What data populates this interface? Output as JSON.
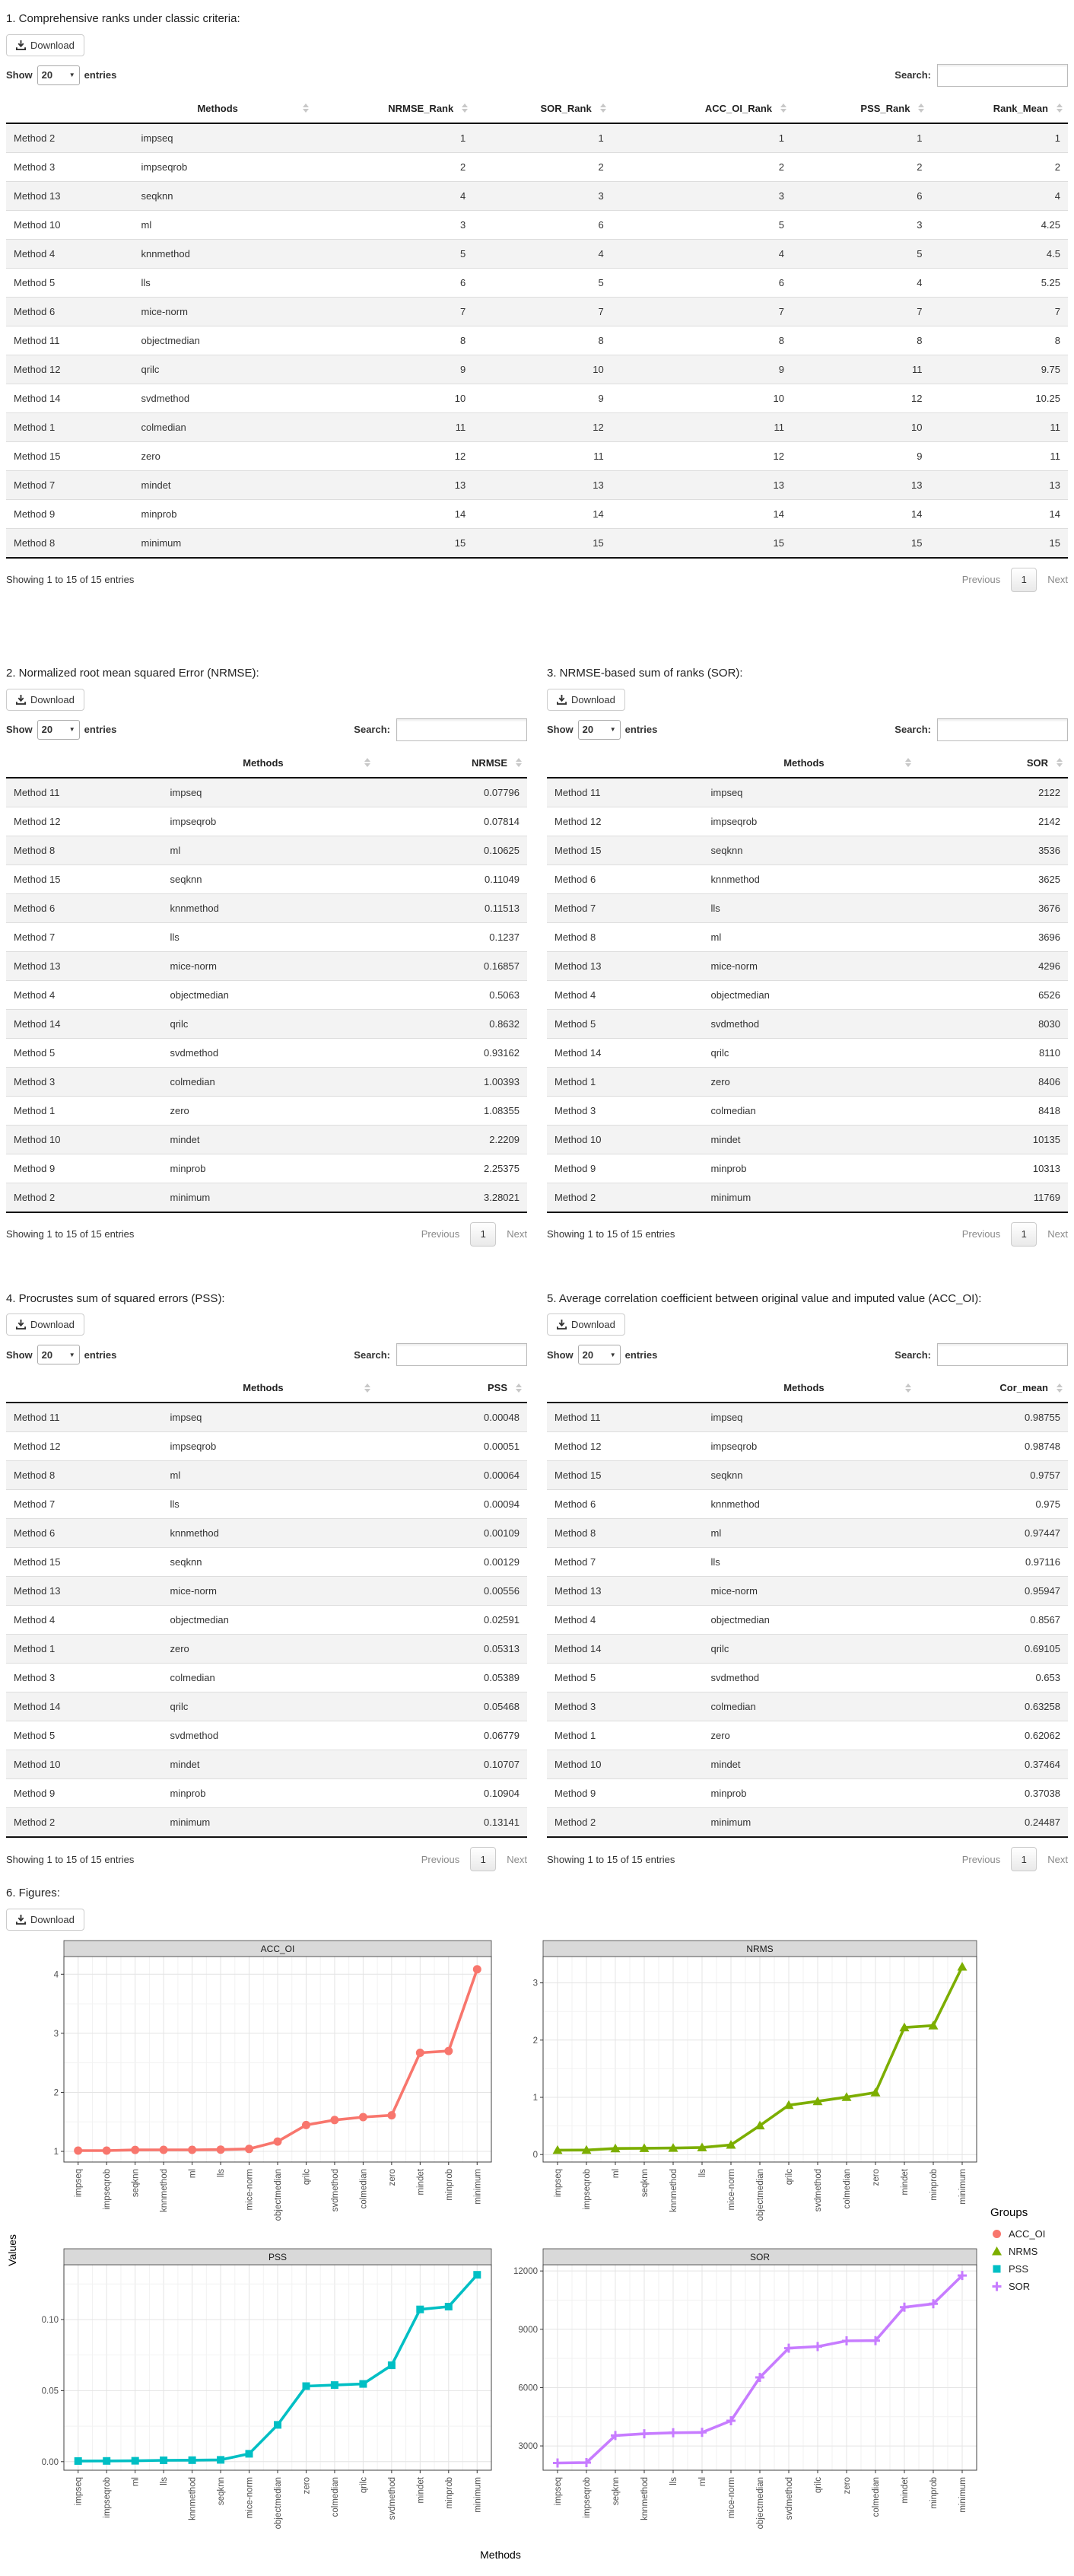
{
  "common": {
    "download_label": "Download",
    "show_label": "Show",
    "page_size": "20",
    "entries_label": "entries",
    "search_label": "Search:",
    "info_text": "Showing 1 to 15 of 15 entries",
    "previous_label": "Previous",
    "page_number": "1",
    "next_label": "Next"
  },
  "tables": [
    {
      "title": "1. Comprehensive ranks under classic criteria:",
      "columns": [
        "",
        "Methods",
        "NRMSE_Rank",
        "SOR_Rank",
        "ACC_OI_Rank",
        "PSS_Rank",
        "Rank_Mean"
      ],
      "rows": [
        [
          "Method 2",
          "impseq",
          "1",
          "1",
          "1",
          "1",
          "1"
        ],
        [
          "Method 3",
          "impseqrob",
          "2",
          "2",
          "2",
          "2",
          "2"
        ],
        [
          "Method 13",
          "seqknn",
          "4",
          "3",
          "3",
          "6",
          "4"
        ],
        [
          "Method 10",
          "ml",
          "3",
          "6",
          "5",
          "3",
          "4.25"
        ],
        [
          "Method 4",
          "knnmethod",
          "5",
          "4",
          "4",
          "5",
          "4.5"
        ],
        [
          "Method 5",
          "lls",
          "6",
          "5",
          "6",
          "4",
          "5.25"
        ],
        [
          "Method 6",
          "mice-norm",
          "7",
          "7",
          "7",
          "7",
          "7"
        ],
        [
          "Method 11",
          "objectmedian",
          "8",
          "8",
          "8",
          "8",
          "8"
        ],
        [
          "Method 12",
          "qrilc",
          "9",
          "10",
          "9",
          "11",
          "9.75"
        ],
        [
          "Method 14",
          "svdmethod",
          "10",
          "9",
          "10",
          "12",
          "10.25"
        ],
        [
          "Method 1",
          "colmedian",
          "11",
          "12",
          "11",
          "10",
          "11"
        ],
        [
          "Method 15",
          "zero",
          "12",
          "11",
          "12",
          "9",
          "11"
        ],
        [
          "Method 7",
          "mindet",
          "13",
          "13",
          "13",
          "13",
          "13"
        ],
        [
          "Method 9",
          "minprob",
          "14",
          "14",
          "14",
          "14",
          "14"
        ],
        [
          "Method 8",
          "minimum",
          "15",
          "15",
          "15",
          "15",
          "15"
        ]
      ]
    },
    {
      "title": "2. Normalized root mean squared Error (NRMSE):",
      "columns": [
        "",
        "Methods",
        "NRMSE"
      ],
      "rows": [
        [
          "Method 11",
          "impseq",
          "0.07796"
        ],
        [
          "Method 12",
          "impseqrob",
          "0.07814"
        ],
        [
          "Method 8",
          "ml",
          "0.10625"
        ],
        [
          "Method 15",
          "seqknn",
          "0.11049"
        ],
        [
          "Method 6",
          "knnmethod",
          "0.11513"
        ],
        [
          "Method 7",
          "lls",
          "0.1237"
        ],
        [
          "Method 13",
          "mice-norm",
          "0.16857"
        ],
        [
          "Method 4",
          "objectmedian",
          "0.5063"
        ],
        [
          "Method 14",
          "qrilc",
          "0.8632"
        ],
        [
          "Method 5",
          "svdmethod",
          "0.93162"
        ],
        [
          "Method 3",
          "colmedian",
          "1.00393"
        ],
        [
          "Method 1",
          "zero",
          "1.08355"
        ],
        [
          "Method 10",
          "mindet",
          "2.2209"
        ],
        [
          "Method 9",
          "minprob",
          "2.25375"
        ],
        [
          "Method 2",
          "minimum",
          "3.28021"
        ]
      ]
    },
    {
      "title": "3. NRMSE-based sum of ranks (SOR):",
      "columns": [
        "",
        "Methods",
        "SOR"
      ],
      "rows": [
        [
          "Method 11",
          "impseq",
          "2122"
        ],
        [
          "Method 12",
          "impseqrob",
          "2142"
        ],
        [
          "Method 15",
          "seqknn",
          "3536"
        ],
        [
          "Method 6",
          "knnmethod",
          "3625"
        ],
        [
          "Method 7",
          "lls",
          "3676"
        ],
        [
          "Method 8",
          "ml",
          "3696"
        ],
        [
          "Method 13",
          "mice-norm",
          "4296"
        ],
        [
          "Method 4",
          "objectmedian",
          "6526"
        ],
        [
          "Method 5",
          "svdmethod",
          "8030"
        ],
        [
          "Method 14",
          "qrilc",
          "8110"
        ],
        [
          "Method 1",
          "zero",
          "8406"
        ],
        [
          "Method 3",
          "colmedian",
          "8418"
        ],
        [
          "Method 10",
          "mindet",
          "10135"
        ],
        [
          "Method 9",
          "minprob",
          "10313"
        ],
        [
          "Method 2",
          "minimum",
          "11769"
        ]
      ]
    },
    {
      "title": "4. Procrustes sum of squared errors (PSS):",
      "columns": [
        "",
        "Methods",
        "PSS"
      ],
      "rows": [
        [
          "Method 11",
          "impseq",
          "0.00048"
        ],
        [
          "Method 12",
          "impseqrob",
          "0.00051"
        ],
        [
          "Method 8",
          "ml",
          "0.00064"
        ],
        [
          "Method 7",
          "lls",
          "0.00094"
        ],
        [
          "Method 6",
          "knnmethod",
          "0.00109"
        ],
        [
          "Method 15",
          "seqknn",
          "0.00129"
        ],
        [
          "Method 13",
          "mice-norm",
          "0.00556"
        ],
        [
          "Method 4",
          "objectmedian",
          "0.02591"
        ],
        [
          "Method 1",
          "zero",
          "0.05313"
        ],
        [
          "Method 3",
          "colmedian",
          "0.05389"
        ],
        [
          "Method 14",
          "qrilc",
          "0.05468"
        ],
        [
          "Method 5",
          "svdmethod",
          "0.06779"
        ],
        [
          "Method 10",
          "mindet",
          "0.10707"
        ],
        [
          "Method 9",
          "minprob",
          "0.10904"
        ],
        [
          "Method 2",
          "minimum",
          "0.13141"
        ]
      ]
    },
    {
      "title": "5. Average correlation coefficient between original value and imputed value (ACC_OI):",
      "columns": [
        "",
        "Methods",
        "Cor_mean"
      ],
      "rows": [
        [
          "Method 11",
          "impseq",
          "0.98755"
        ],
        [
          "Method 12",
          "impseqrob",
          "0.98748"
        ],
        [
          "Method 15",
          "seqknn",
          "0.9757"
        ],
        [
          "Method 6",
          "knnmethod",
          "0.975"
        ],
        [
          "Method 8",
          "ml",
          "0.97447"
        ],
        [
          "Method 7",
          "lls",
          "0.97116"
        ],
        [
          "Method 13",
          "mice-norm",
          "0.95947"
        ],
        [
          "Method 4",
          "objectmedian",
          "0.8567"
        ],
        [
          "Method 14",
          "qrilc",
          "0.69105"
        ],
        [
          "Method 5",
          "svdmethod",
          "0.653"
        ],
        [
          "Method 3",
          "colmedian",
          "0.63258"
        ],
        [
          "Method 1",
          "zero",
          "0.62062"
        ],
        [
          "Method 10",
          "mindet",
          "0.37464"
        ],
        [
          "Method 9",
          "minprob",
          "0.37038"
        ],
        [
          "Method 2",
          "minimum",
          "0.24487"
        ]
      ]
    }
  ],
  "chart_data": {
    "type": "line",
    "figure_title": "6. Figures:",
    "ylabel": "Values",
    "xlabel": "Methods",
    "strip_bg": "#D9D9D9",
    "legend": {
      "title": "Groups",
      "entries": [
        {
          "label": "ACC_OI",
          "color": "#F8766D",
          "marker": "circle"
        },
        {
          "label": "NRMS",
          "color": "#7CAE00",
          "marker": "triangle"
        },
        {
          "label": "PSS",
          "color": "#00BFC4",
          "marker": "square"
        },
        {
          "label": "SOR",
          "color": "#C77CFF",
          "marker": "plus"
        }
      ]
    },
    "panels": [
      {
        "title": "ACC_OI",
        "color": "#F8766D",
        "marker": "circle",
        "categories": [
          "impseq",
          "impseqrob",
          "seqknn",
          "knnmethod",
          "ml",
          "lls",
          "mice-norm",
          "objectmedian",
          "qrilc",
          "svdmethod",
          "colmedian",
          "zero",
          "mindet",
          "minprob",
          "minimum"
        ],
        "values": [
          1.013,
          1.013,
          1.025,
          1.026,
          1.026,
          1.03,
          1.042,
          1.167,
          1.447,
          1.531,
          1.581,
          1.611,
          2.669,
          2.7,
          4.084
        ],
        "yticks": [
          1,
          2,
          3,
          4
        ],
        "ytick_labels": [
          "1",
          "2",
          "3",
          "4"
        ],
        "ylim": [
          0.82,
          4.3
        ]
      },
      {
        "title": "NRMS",
        "color": "#7CAE00",
        "marker": "triangle",
        "categories": [
          "impseq",
          "impseqrob",
          "ml",
          "seqknn",
          "knnmethod",
          "lls",
          "mice-norm",
          "objectmedian",
          "qrilc",
          "svdmethod",
          "colmedian",
          "zero",
          "mindet",
          "minprob",
          "minimum"
        ],
        "values": [
          0.07796,
          0.07814,
          0.10625,
          0.11049,
          0.11513,
          0.1237,
          0.16857,
          0.5063,
          0.8632,
          0.93162,
          1.00393,
          1.08355,
          2.2209,
          2.25375,
          3.28021
        ],
        "yticks": [
          0,
          1,
          2,
          3
        ],
        "ytick_labels": [
          "0",
          "1",
          "2",
          "3"
        ],
        "ylim": [
          -0.13,
          3.46
        ]
      },
      {
        "title": "PSS",
        "color": "#00BFC4",
        "marker": "square",
        "categories": [
          "impseq",
          "impseqrob",
          "ml",
          "lls",
          "knnmethod",
          "seqknn",
          "mice-norm",
          "objectmedian",
          "zero",
          "colmedian",
          "qrilc",
          "svdmethod",
          "mindet",
          "minprob",
          "minimum"
        ],
        "values": [
          0.00048,
          0.00051,
          0.00064,
          0.00094,
          0.00109,
          0.00129,
          0.00556,
          0.02591,
          0.05313,
          0.05389,
          0.05468,
          0.06779,
          0.10707,
          0.10904,
          0.13141
        ],
        "yticks": [
          0,
          0.05,
          0.1
        ],
        "ytick_labels": [
          "0.00",
          "0.05",
          "0.10"
        ],
        "ylim": [
          -0.006,
          0.1385
        ]
      },
      {
        "title": "SOR",
        "color": "#C77CFF",
        "marker": "plus",
        "categories": [
          "impseq",
          "impseqrob",
          "seqknn",
          "knnmethod",
          "lls",
          "ml",
          "mice-norm",
          "objectmedian",
          "svdmethod",
          "qrilc",
          "zero",
          "colmedian",
          "mindet",
          "minprob",
          "minimum"
        ],
        "values": [
          2122,
          2142,
          3536,
          3625,
          3676,
          3696,
          4296,
          6526,
          8030,
          8110,
          8406,
          8418,
          10135,
          10313,
          11769
        ],
        "yticks": [
          3000,
          6000,
          9000,
          12000
        ],
        "ytick_labels": [
          "3000",
          "6000",
          "9000",
          "12000"
        ],
        "ylim": [
          1750,
          12320
        ]
      }
    ]
  }
}
